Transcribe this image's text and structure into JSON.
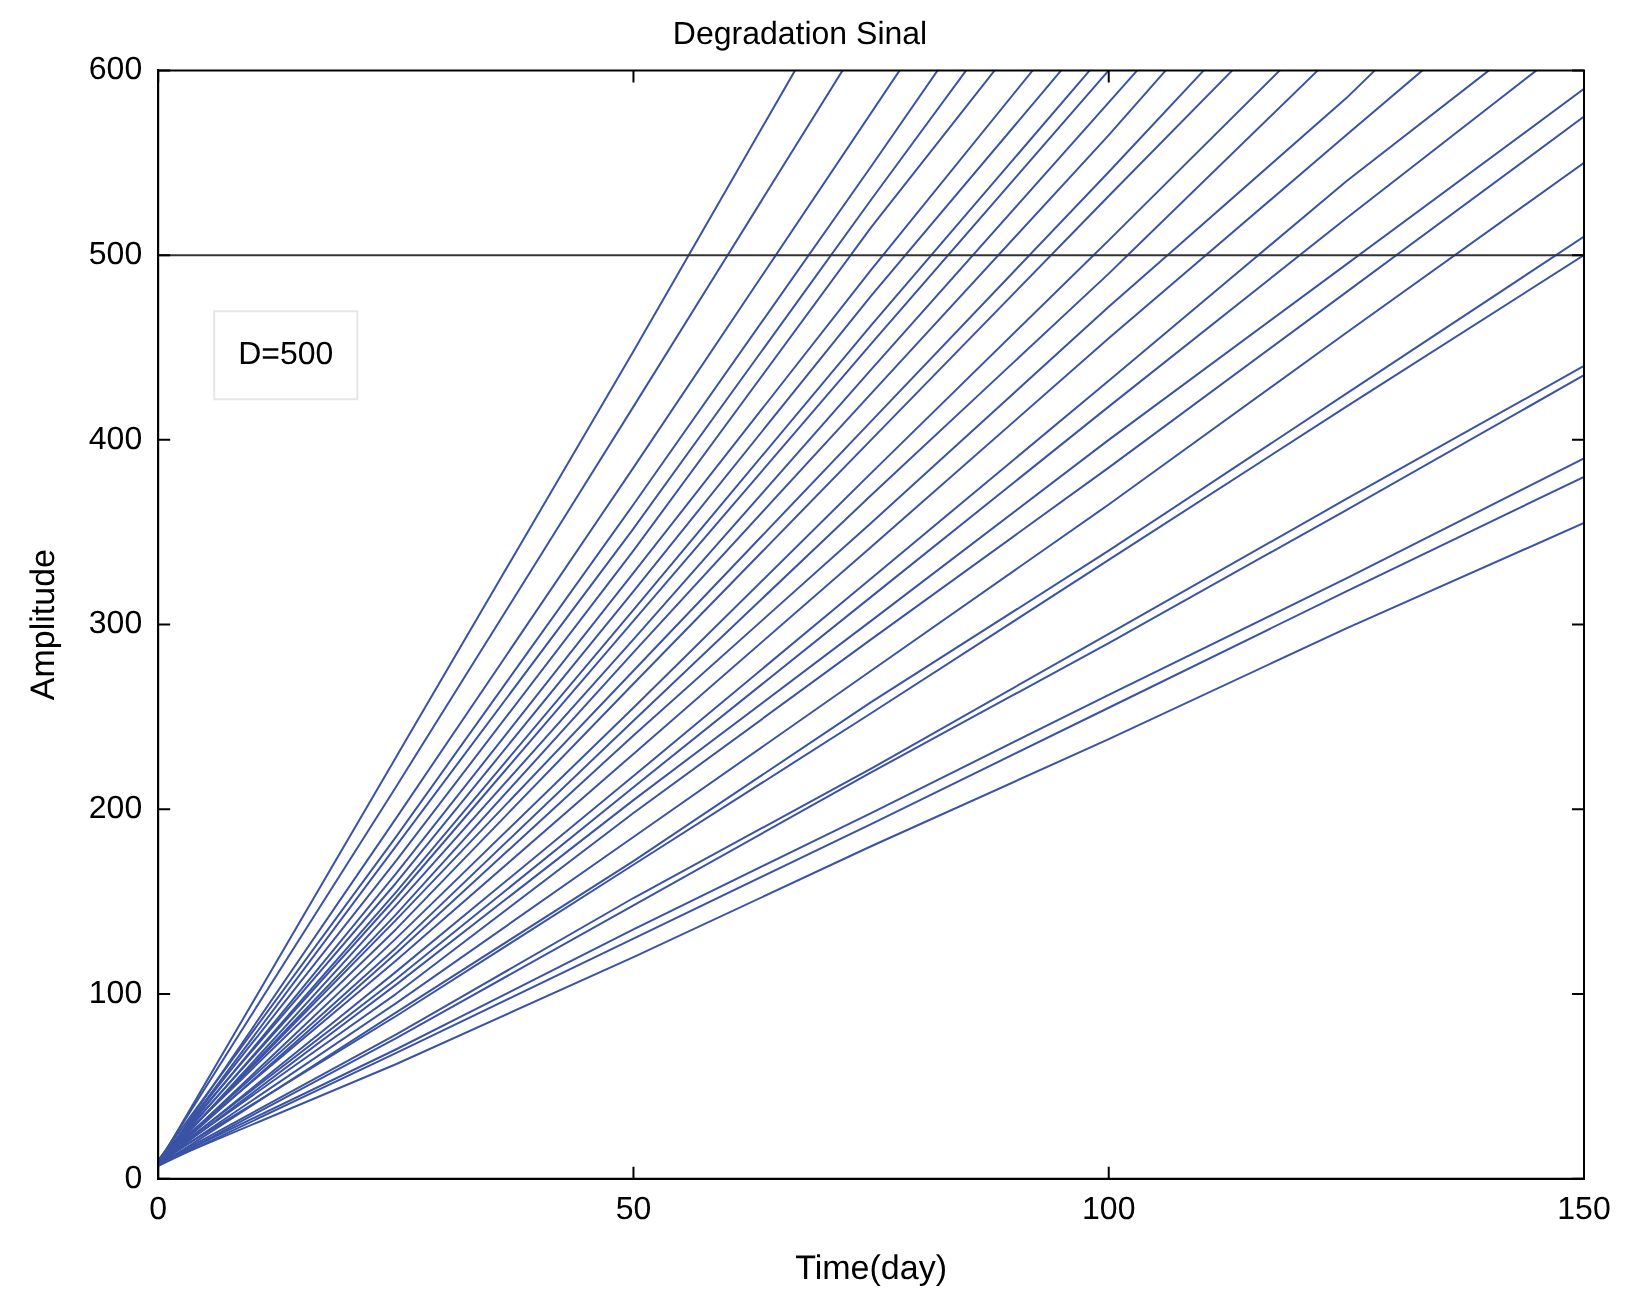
{
  "chart_data": {
    "type": "line",
    "title": "Degradation Sinal",
    "xlabel": "Time(day)",
    "ylabel": "Amplitude",
    "xlim": [
      0,
      150
    ],
    "xticks": [
      0,
      50,
      100,
      150
    ],
    "ylim": [
      0,
      600
    ],
    "yticks": [
      0,
      100,
      200,
      300,
      400,
      500,
      600
    ],
    "grid": false,
    "legend": false,
    "marker": "none",
    "line_style": "solid",
    "ref_lines": [
      {
        "axis": "y",
        "value": 500,
        "label": "D=500",
        "color": "#333333"
      }
    ],
    "series": [
      {
        "color": "#3a53a4",
        "x": [
          0,
          25,
          50,
          67
        ],
        "values": [
          8,
          228,
          448,
          600
        ]
      },
      {
        "color": "#3a53a4",
        "x": [
          0,
          25,
          50,
          72
        ],
        "values": [
          9,
          212,
          418,
          600
        ]
      },
      {
        "color": "#3a53a4",
        "x": [
          0,
          25,
          50,
          78
        ],
        "values": [
          7,
          195,
          385,
          600
        ]
      },
      {
        "color": "#3a53a4",
        "x": [
          0,
          25,
          50,
          75,
          82
        ],
        "values": [
          10,
          185,
          365,
          548,
          600
        ]
      },
      {
        "color": "#3a53a4",
        "x": [
          0,
          25,
          50,
          75,
          85
        ],
        "values": [
          8,
          180,
          352,
          530,
          600
        ]
      },
      {
        "color": "#3a53a4",
        "x": [
          0,
          25,
          50,
          75,
          88
        ],
        "values": [
          9,
          172,
          340,
          515,
          600
        ]
      },
      {
        "color": "#3a53a4",
        "x": [
          0,
          25,
          50,
          75,
          92
        ],
        "values": [
          8,
          165,
          328,
          492,
          600
        ]
      },
      {
        "color": "#3a53a4",
        "x": [
          0,
          25,
          50,
          75,
          95
        ],
        "values": [
          10,
          160,
          318,
          478,
          600
        ]
      },
      {
        "color": "#3a53a4",
        "x": [
          0,
          25,
          50,
          75,
          98
        ],
        "values": [
          8,
          155,
          308,
          462,
          600
        ]
      },
      {
        "color": "#3a53a4",
        "x": [
          0,
          25,
          50,
          75,
          100
        ],
        "values": [
          9,
          152,
          302,
          452,
          600
        ]
      },
      {
        "color": "#3a53a4",
        "x": [
          0,
          25,
          50,
          75,
          103
        ],
        "values": [
          7,
          148,
          292,
          438,
          600
        ]
      },
      {
        "color": "#3a53a4",
        "x": [
          0,
          25,
          50,
          75,
          100,
          106
        ],
        "values": [
          8,
          143,
          285,
          425,
          565,
          600
        ]
      },
      {
        "color": "#3a53a4",
        "x": [
          0,
          25,
          50,
          75,
          100,
          110
        ],
        "values": [
          9,
          140,
          275,
          410,
          545,
          600
        ]
      },
      {
        "color": "#3a53a4",
        "x": [
          0,
          25,
          50,
          75,
          100,
          113
        ],
        "values": [
          10,
          135,
          268,
          400,
          532,
          600
        ]
      },
      {
        "color": "#3a53a4",
        "x": [
          0,
          25,
          50,
          75,
          100,
          118
        ],
        "values": [
          8,
          130,
          255,
          382,
          508,
          600
        ]
      },
      {
        "color": "#3a53a4",
        "x": [
          0,
          25,
          50,
          75,
          100,
          122
        ],
        "values": [
          9,
          125,
          248,
          370,
          490,
          600
        ]
      },
      {
        "color": "#3a53a4",
        "x": [
          0,
          25,
          50,
          75,
          100,
          125,
          128
        ],
        "values": [
          8,
          122,
          240,
          355,
          472,
          585,
          600
        ]
      },
      {
        "color": "#3a53a4",
        "x": [
          0,
          25,
          50,
          75,
          100,
          125,
          133
        ],
        "values": [
          10,
          118,
          230,
          342,
          455,
          565,
          600
        ]
      },
      {
        "color": "#3a53a4",
        "x": [
          0,
          25,
          50,
          75,
          100,
          125,
          140
        ],
        "values": [
          8,
          112,
          218,
          325,
          432,
          540,
          600
        ]
      },
      {
        "color": "#3a53a4",
        "x": [
          0,
          25,
          50,
          75,
          100,
          125,
          145
        ],
        "values": [
          9,
          108,
          212,
          315,
          418,
          520,
          600
        ]
      },
      {
        "color": "#3a53a4",
        "x": [
          0,
          25,
          50,
          75,
          100,
          125,
          150
        ],
        "values": [
          8,
          105,
          205,
          302,
          400,
          495,
          590
        ]
      },
      {
        "color": "#3a53a4",
        "x": [
          0,
          25,
          50,
          75,
          100,
          125,
          150
        ],
        "values": [
          9,
          100,
          198,
          292,
          385,
          480,
          575
        ]
      },
      {
        "color": "#3a53a4",
        "x": [
          0,
          25,
          50,
          75,
          100,
          125,
          150
        ],
        "values": [
          8,
          95,
          185,
          275,
          365,
          458,
          550
        ]
      },
      {
        "color": "#3a53a4",
        "x": [
          0,
          25,
          50,
          75,
          100,
          125,
          150
        ],
        "values": [
          7,
          90,
          172,
          258,
          340,
          425,
          510
        ]
      },
      {
        "color": "#3a53a4",
        "x": [
          0,
          25,
          50,
          75,
          100,
          125,
          150
        ],
        "values": [
          9,
          88,
          170,
          252,
          335,
          418,
          500
        ]
      },
      {
        "color": "#3a53a4",
        "x": [
          0,
          25,
          50,
          75,
          100,
          125,
          150
        ],
        "values": [
          8,
          78,
          152,
          222,
          295,
          368,
          440
        ]
      },
      {
        "color": "#3a53a4",
        "x": [
          0,
          25,
          50,
          75,
          100,
          125,
          150
        ],
        "values": [
          7,
          76,
          148,
          220,
          290,
          362,
          435
        ]
      },
      {
        "color": "#3a53a4",
        "x": [
          0,
          25,
          50,
          75,
          100,
          125,
          150
        ],
        "values": [
          8,
          70,
          135,
          198,
          262,
          325,
          390
        ]
      },
      {
        "color": "#3a53a4",
        "x": [
          0,
          25,
          50,
          75,
          100,
          125,
          150
        ],
        "values": [
          7,
          68,
          130,
          192,
          255,
          318,
          380
        ]
      },
      {
        "color": "#3a53a4",
        "x": [
          0,
          25,
          50,
          75,
          100,
          125,
          150
        ],
        "values": [
          8,
          62,
          120,
          180,
          238,
          298,
          355
        ]
      }
    ]
  }
}
